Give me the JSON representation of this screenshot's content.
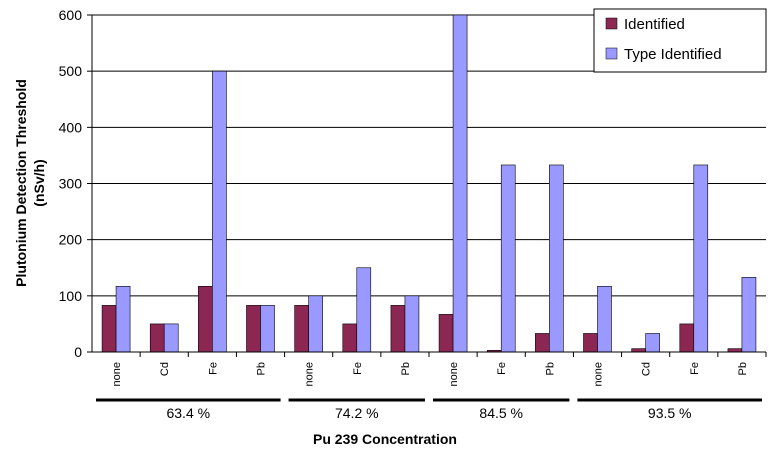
{
  "chart_data": {
    "type": "bar",
    "ylabel": "Plutonium Detection Threshold (nSv/h)",
    "xlabel": "Pu 239 Concentration",
    "ylim": [
      0,
      600
    ],
    "yticks": [
      0,
      100,
      200,
      300,
      400,
      500,
      600
    ],
    "grid": true,
    "legend_position": "top-right",
    "groups": [
      {
        "label": "63.4 %",
        "categories": [
          "none",
          "Cd",
          "Fe",
          "Pb"
        ]
      },
      {
        "label": "74.2 %",
        "categories": [
          "none",
          "Fe",
          "Pb"
        ]
      },
      {
        "label": "84.5 %",
        "categories": [
          "none",
          "Fe",
          "Pb"
        ]
      },
      {
        "label": "93.5 %",
        "categories": [
          "none",
          "Cd",
          "Fe",
          "Pb"
        ]
      }
    ],
    "categories": [
      "none",
      "Cd",
      "Fe",
      "Pb",
      "none",
      "Fe",
      "Pb",
      "none",
      "Fe",
      "Pb",
      "none",
      "Cd",
      "Fe",
      "Pb"
    ],
    "series": [
      {
        "name": "Identified",
        "color": "#8b2752",
        "values": [
          83,
          50,
          117,
          83,
          83,
          50,
          83,
          67,
          3,
          33,
          33,
          6,
          50,
          6
        ]
      },
      {
        "name": "Type Identified",
        "color": "#9999ff",
        "values": [
          117,
          50,
          500,
          83,
          100,
          150,
          100,
          605,
          333,
          333,
          117,
          33,
          333,
          133
        ]
      }
    ]
  }
}
